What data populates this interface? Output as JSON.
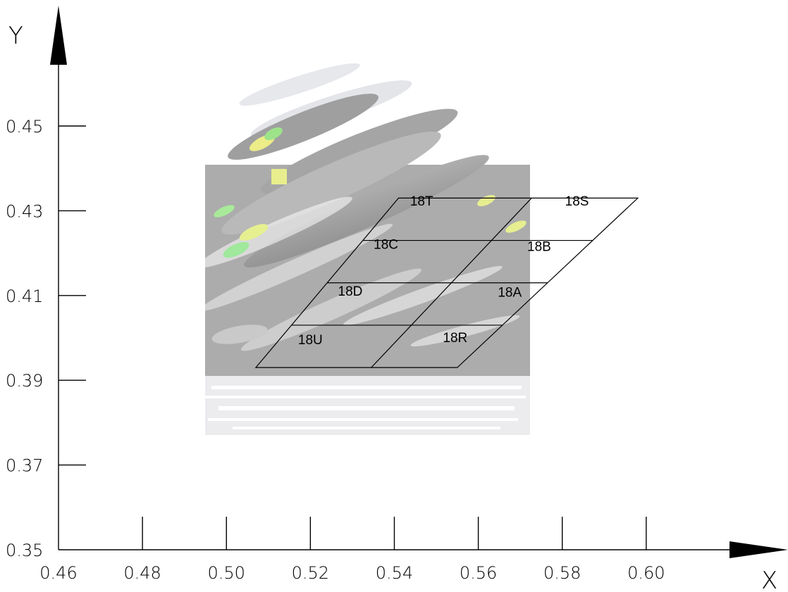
{
  "chart_data": {
    "type": "scatter",
    "xlabel": "X",
    "ylabel": "Y",
    "xlim": [
      0.46,
      0.62
    ],
    "ylim": [
      0.35,
      0.47
    ],
    "x_ticks": [
      "0.46",
      "0.48",
      "0.50",
      "0.52",
      "0.54",
      "0.56",
      "0.58",
      "0.60"
    ],
    "y_ticks": [
      "0.35",
      "0.37",
      "0.39",
      "0.41",
      "0.43",
      "0.45"
    ],
    "overlay_image": {
      "description": "faded grey / white / green / yellow streaked image",
      "extent": {
        "x": [
          0.495,
          0.572
        ],
        "y": [
          0.377,
          0.441
        ]
      }
    },
    "grid": {
      "bottom_left": [
        0.507,
        0.393
      ],
      "bottom_right": [
        0.555,
        0.393
      ],
      "top_left": [
        0.541,
        0.433
      ],
      "top_right": [
        0.598,
        0.433
      ],
      "rows": [
        [
          "18T",
          "18S"
        ],
        [
          "18C",
          "18B"
        ],
        [
          "18D",
          "18A"
        ],
        [
          "18U",
          "18R"
        ]
      ],
      "label_positions": [
        {
          "label": "18T",
          "x": 0.5465,
          "y": 0.4312
        },
        {
          "label": "18S",
          "x": 0.5835,
          "y": 0.4312
        },
        {
          "label": "18C",
          "x": 0.538,
          "y": 0.421
        },
        {
          "label": "18B",
          "x": 0.5745,
          "y": 0.4205
        },
        {
          "label": "18D",
          "x": 0.5295,
          "y": 0.41
        },
        {
          "label": "18A",
          "x": 0.5675,
          "y": 0.4097
        },
        {
          "label": "18U",
          "x": 0.52,
          "y": 0.3985
        },
        {
          "label": "18R",
          "x": 0.5545,
          "y": 0.399
        }
      ]
    }
  }
}
